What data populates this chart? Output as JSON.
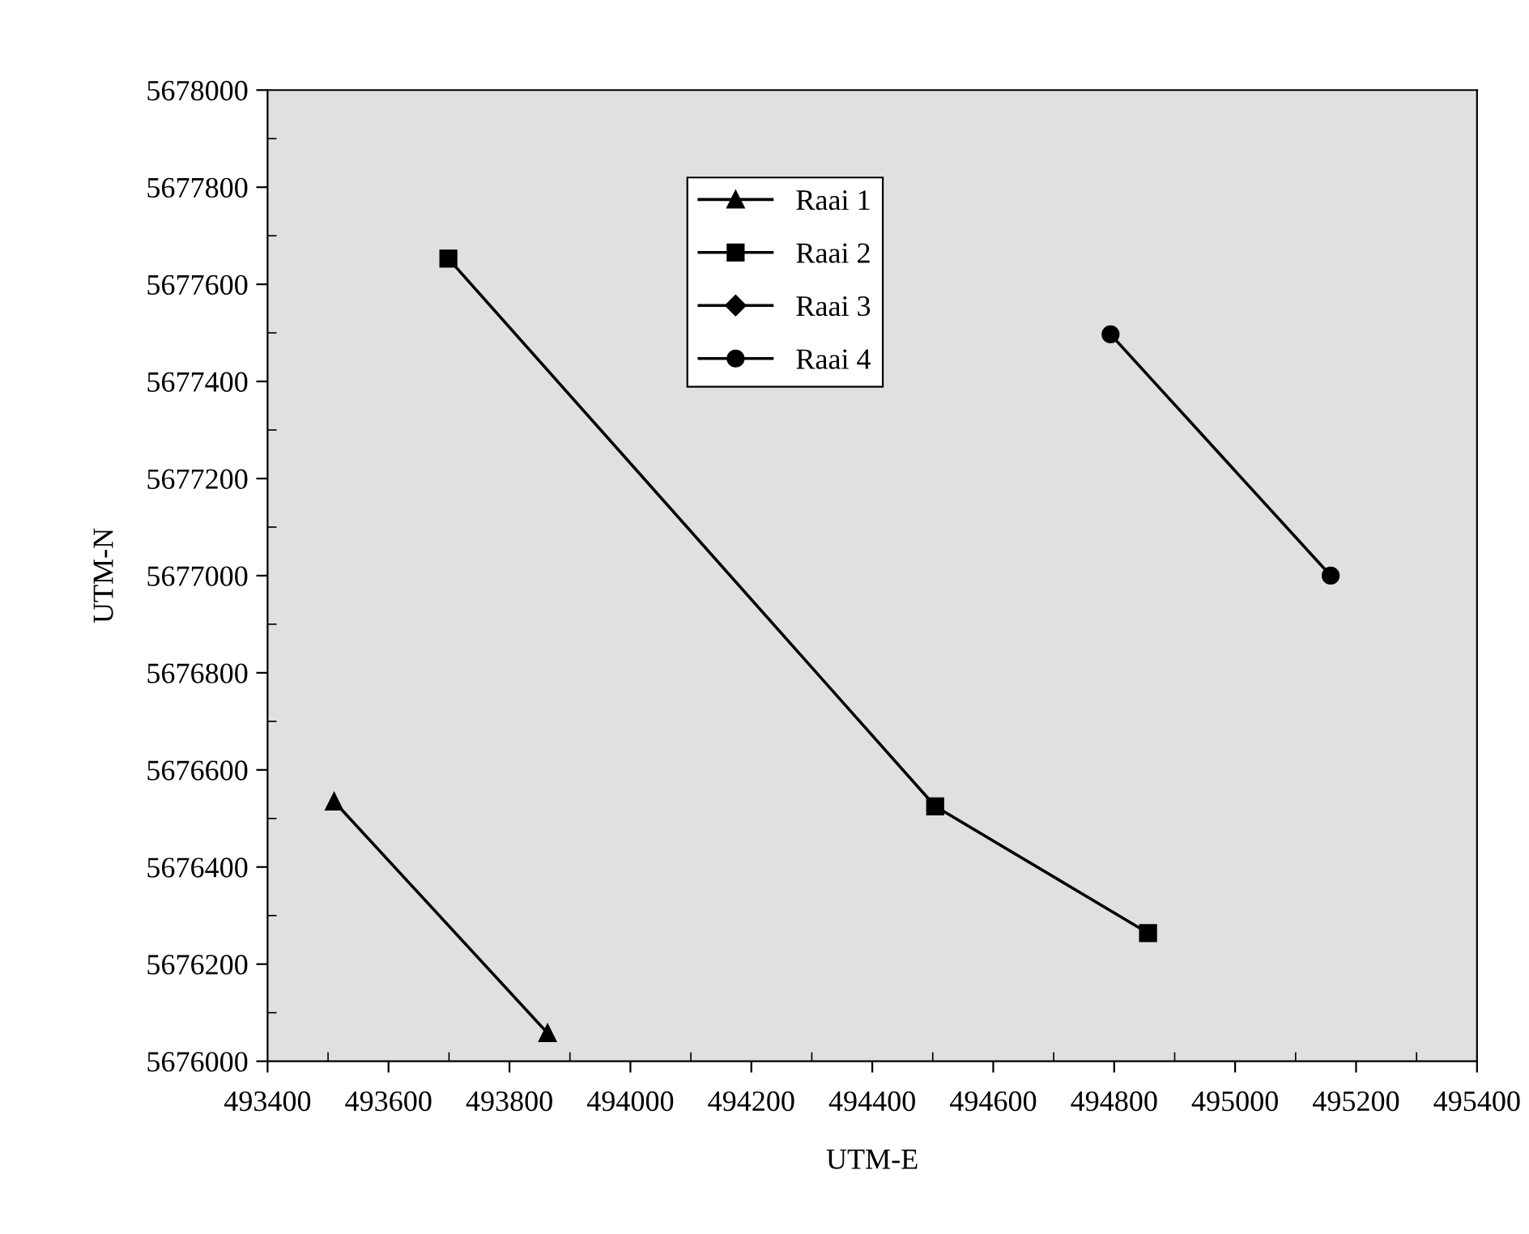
{
  "chart_data": {
    "type": "line",
    "xlabel": "UTM-E",
    "ylabel": "UTM-N",
    "xlim": [
      493400,
      495400
    ],
    "xticks": [
      493400,
      493600,
      493800,
      494000,
      494200,
      494400,
      494600,
      494800,
      495000,
      495200,
      495400
    ],
    "ylim": [
      5676000,
      5678000
    ],
    "yticks": [
      5676000,
      5676200,
      5676400,
      5676600,
      5676800,
      5677000,
      5677200,
      5677400,
      5677600,
      5677800,
      5678000
    ],
    "grid": false,
    "legend": "top",
    "line_style": "solid",
    "series": [
      {
        "name": "Raai 1",
        "color": "#000000",
        "marker": "triangle",
        "x": [
          493510,
          493863
        ],
        "values": [
          5676535,
          5676058
        ]
      },
      {
        "name": "Raai 2",
        "color": "#000000",
        "marker": "square",
        "x": [
          493699,
          494504,
          494856
        ],
        "values": [
          5677653,
          5676525,
          5676264
        ]
      },
      {
        "name": "Raai 3",
        "color": "#000000",
        "marker": "diamond"
      },
      {
        "name": "Raai 4",
        "color": "#000000",
        "marker": "circle",
        "x": [
          494794,
          495158
        ],
        "values": [
          5677497,
          5677000
        ]
      }
    ]
  }
}
